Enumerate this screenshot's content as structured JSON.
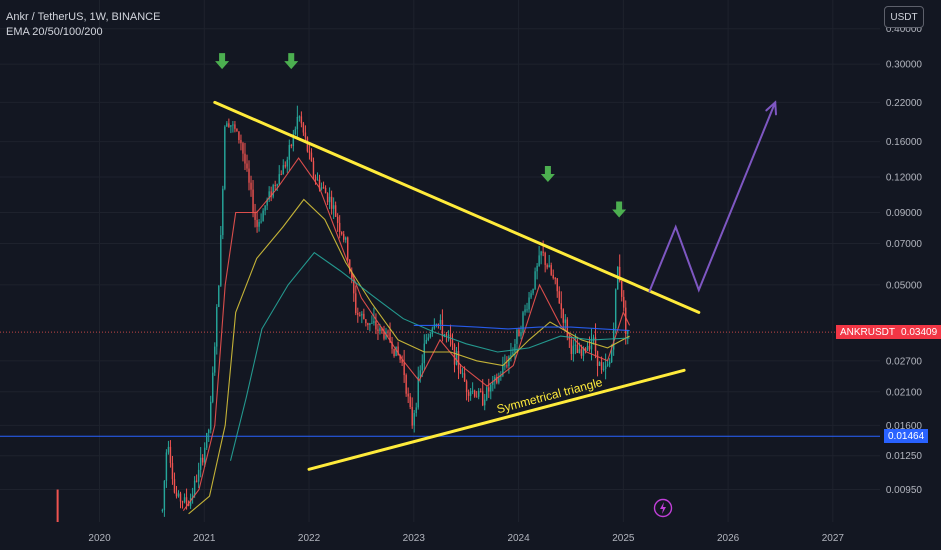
{
  "header": {
    "symbol_line": "Ankr / TetherUS, 1W, BINANCE",
    "indicator_line": "EMA 20/50/100/200"
  },
  "toolbar": {
    "currency_label": "USDT"
  },
  "colors": {
    "background": "#131722",
    "grid": "#1e222d",
    "axis_text": "#b2b5be",
    "candle_up": "#26a69a",
    "candle_down": "#ef5350",
    "ema20": "#ef5350",
    "ema50": "#d7c33a",
    "ema100": "#26a69a",
    "ema200": "#2962ff",
    "trendline": "#ffeb3b",
    "signal_arrow": "#4caf50",
    "projection": "#7e57c2",
    "support_line": "#2962ff",
    "current_price_line": "#ef5350"
  },
  "price_tags": {
    "current": {
      "symbol": "ANKRUSDT",
      "value": "0.03409",
      "value_num": 0.03409,
      "color": "#f23645"
    },
    "support": {
      "value": "0.01464",
      "value_num": 0.01464,
      "color": "#2962ff"
    }
  },
  "annotation": {
    "text": "Symmetrical triangle"
  },
  "flash_icon": "lightning-icon",
  "chart_data": {
    "type": "candlestick",
    "scale": "log",
    "xlim": [
      2019.05,
      2027.45
    ],
    "ylim": [
      0.0073,
      0.505
    ],
    "x_ticks": [
      2020,
      2021,
      2022,
      2023,
      2024,
      2025,
      2026,
      2027
    ],
    "x_tick_labels": [
      "2020",
      "2021",
      "2022",
      "2023",
      "2024",
      "2025",
      "2026",
      "2027"
    ],
    "y_ticks": [
      0.4,
      0.3,
      0.22,
      0.16,
      0.12,
      0.09,
      0.07,
      0.05,
      0.027,
      0.021,
      0.016,
      0.0125,
      0.0095
    ],
    "y_tick_labels": [
      "0.40000",
      "0.30000",
      "0.22000",
      "0.16000",
      "0.12000",
      "0.09000",
      "0.07000",
      "0.05000",
      "0.02700",
      "0.02100",
      "0.01600",
      "0.01250",
      "0.00950"
    ],
    "price_path": [
      [
        2019.6,
        0.0095
      ],
      [
        2019.62,
        0.0082
      ],
      [
        2020.6,
        0.008
      ],
      [
        2020.65,
        0.015
      ],
      [
        2020.72,
        0.009
      ],
      [
        2020.85,
        0.0085
      ],
      [
        2020.95,
        0.011
      ],
      [
        2021.05,
        0.016
      ],
      [
        2021.15,
        0.06
      ],
      [
        2021.2,
        0.2
      ],
      [
        2021.35,
        0.16
      ],
      [
        2021.5,
        0.08
      ],
      [
        2021.65,
        0.11
      ],
      [
        2021.8,
        0.14
      ],
      [
        2021.9,
        0.2
      ],
      [
        2022.05,
        0.12
      ],
      [
        2022.2,
        0.1
      ],
      [
        2022.35,
        0.07
      ],
      [
        2022.45,
        0.04
      ],
      [
        2022.6,
        0.036
      ],
      [
        2022.75,
        0.033
      ],
      [
        2022.9,
        0.026
      ],
      [
        2022.98,
        0.016
      ],
      [
        2023.1,
        0.03
      ],
      [
        2023.2,
        0.038
      ],
      [
        2023.35,
        0.031
      ],
      [
        2023.5,
        0.022
      ],
      [
        2023.65,
        0.02
      ],
      [
        2023.8,
        0.023
      ],
      [
        2023.95,
        0.03
      ],
      [
        2024.1,
        0.045
      ],
      [
        2024.22,
        0.065
      ],
      [
        2024.35,
        0.05
      ],
      [
        2024.5,
        0.03
      ],
      [
        2024.6,
        0.028
      ],
      [
        2024.7,
        0.033
      ],
      [
        2024.8,
        0.024
      ],
      [
        2024.88,
        0.027
      ],
      [
        2024.95,
        0.06
      ],
      [
        2025.02,
        0.036
      ],
      [
        2025.06,
        0.034
      ]
    ],
    "ema_series": [
      {
        "name": "EMA 20",
        "points": [
          [
            2020.8,
            0.008
          ],
          [
            2020.95,
            0.0095
          ],
          [
            2021.1,
            0.016
          ],
          [
            2021.2,
            0.05
          ],
          [
            2021.3,
            0.09
          ],
          [
            2021.5,
            0.09
          ],
          [
            2021.7,
            0.11
          ],
          [
            2021.9,
            0.14
          ],
          [
            2022.1,
            0.11
          ],
          [
            2022.3,
            0.07
          ],
          [
            2022.5,
            0.045
          ],
          [
            2022.7,
            0.035
          ],
          [
            2022.9,
            0.027
          ],
          [
            2023.05,
            0.023
          ],
          [
            2023.25,
            0.032
          ],
          [
            2023.45,
            0.026
          ],
          [
            2023.7,
            0.022
          ],
          [
            2023.95,
            0.026
          ],
          [
            2024.2,
            0.05
          ],
          [
            2024.4,
            0.036
          ],
          [
            2024.65,
            0.029
          ],
          [
            2024.85,
            0.027
          ],
          [
            2025.0,
            0.04
          ],
          [
            2025.06,
            0.036
          ]
        ]
      },
      {
        "name": "EMA 50",
        "points": [
          [
            2020.85,
            0.0078
          ],
          [
            2021.05,
            0.009
          ],
          [
            2021.2,
            0.016
          ],
          [
            2021.3,
            0.04
          ],
          [
            2021.5,
            0.062
          ],
          [
            2021.75,
            0.08
          ],
          [
            2021.95,
            0.1
          ],
          [
            2022.15,
            0.085
          ],
          [
            2022.35,
            0.06
          ],
          [
            2022.6,
            0.043
          ],
          [
            2022.85,
            0.032
          ],
          [
            2023.1,
            0.029
          ],
          [
            2023.35,
            0.029
          ],
          [
            2023.6,
            0.027
          ],
          [
            2023.85,
            0.026
          ],
          [
            2024.1,
            0.032
          ],
          [
            2024.3,
            0.037
          ],
          [
            2024.6,
            0.032
          ],
          [
            2024.85,
            0.03
          ],
          [
            2025.06,
            0.033
          ]
        ]
      },
      {
        "name": "EMA 100",
        "points": [
          [
            2021.25,
            0.012
          ],
          [
            2021.4,
            0.02
          ],
          [
            2021.55,
            0.035
          ],
          [
            2021.8,
            0.05
          ],
          [
            2022.05,
            0.065
          ],
          [
            2022.3,
            0.056
          ],
          [
            2022.6,
            0.046
          ],
          [
            2022.9,
            0.038
          ],
          [
            2023.2,
            0.034
          ],
          [
            2023.5,
            0.031
          ],
          [
            2023.8,
            0.029
          ],
          [
            2024.1,
            0.03
          ],
          [
            2024.4,
            0.033
          ],
          [
            2024.7,
            0.032
          ],
          [
            2025.06,
            0.0325
          ]
        ]
      },
      {
        "name": "EMA 200",
        "points": [
          [
            2023.0,
            0.036
          ],
          [
            2023.3,
            0.036
          ],
          [
            2023.6,
            0.0355
          ],
          [
            2023.9,
            0.035
          ],
          [
            2024.2,
            0.0355
          ],
          [
            2024.5,
            0.0355
          ],
          [
            2024.8,
            0.035
          ],
          [
            2025.06,
            0.0345
          ]
        ]
      }
    ],
    "trendlines": [
      {
        "name": "upper-resistance",
        "points": [
          [
            2021.1,
            0.22
          ],
          [
            2025.72,
            0.04
          ]
        ]
      },
      {
        "name": "lower-support",
        "points": [
          [
            2022.0,
            0.0112
          ],
          [
            2025.58,
            0.025
          ]
        ]
      },
      {
        "name": "projection",
        "points": [
          [
            2025.25,
            0.0475
          ],
          [
            2025.5,
            0.08
          ],
          [
            2025.72,
            0.048
          ],
          [
            2026.45,
            0.22
          ]
        ]
      }
    ],
    "signal_arrows": [
      {
        "x": 2021.17,
        "y": 0.3
      },
      {
        "x": 2021.83,
        "y": 0.3
      },
      {
        "x": 2024.28,
        "y": 0.12
      },
      {
        "x": 2024.96,
        "y": 0.09
      }
    ],
    "horizontal_lines": [
      {
        "name": "support-level",
        "value": 0.01464
      },
      {
        "name": "current-price",
        "value": 0.03409
      }
    ]
  }
}
